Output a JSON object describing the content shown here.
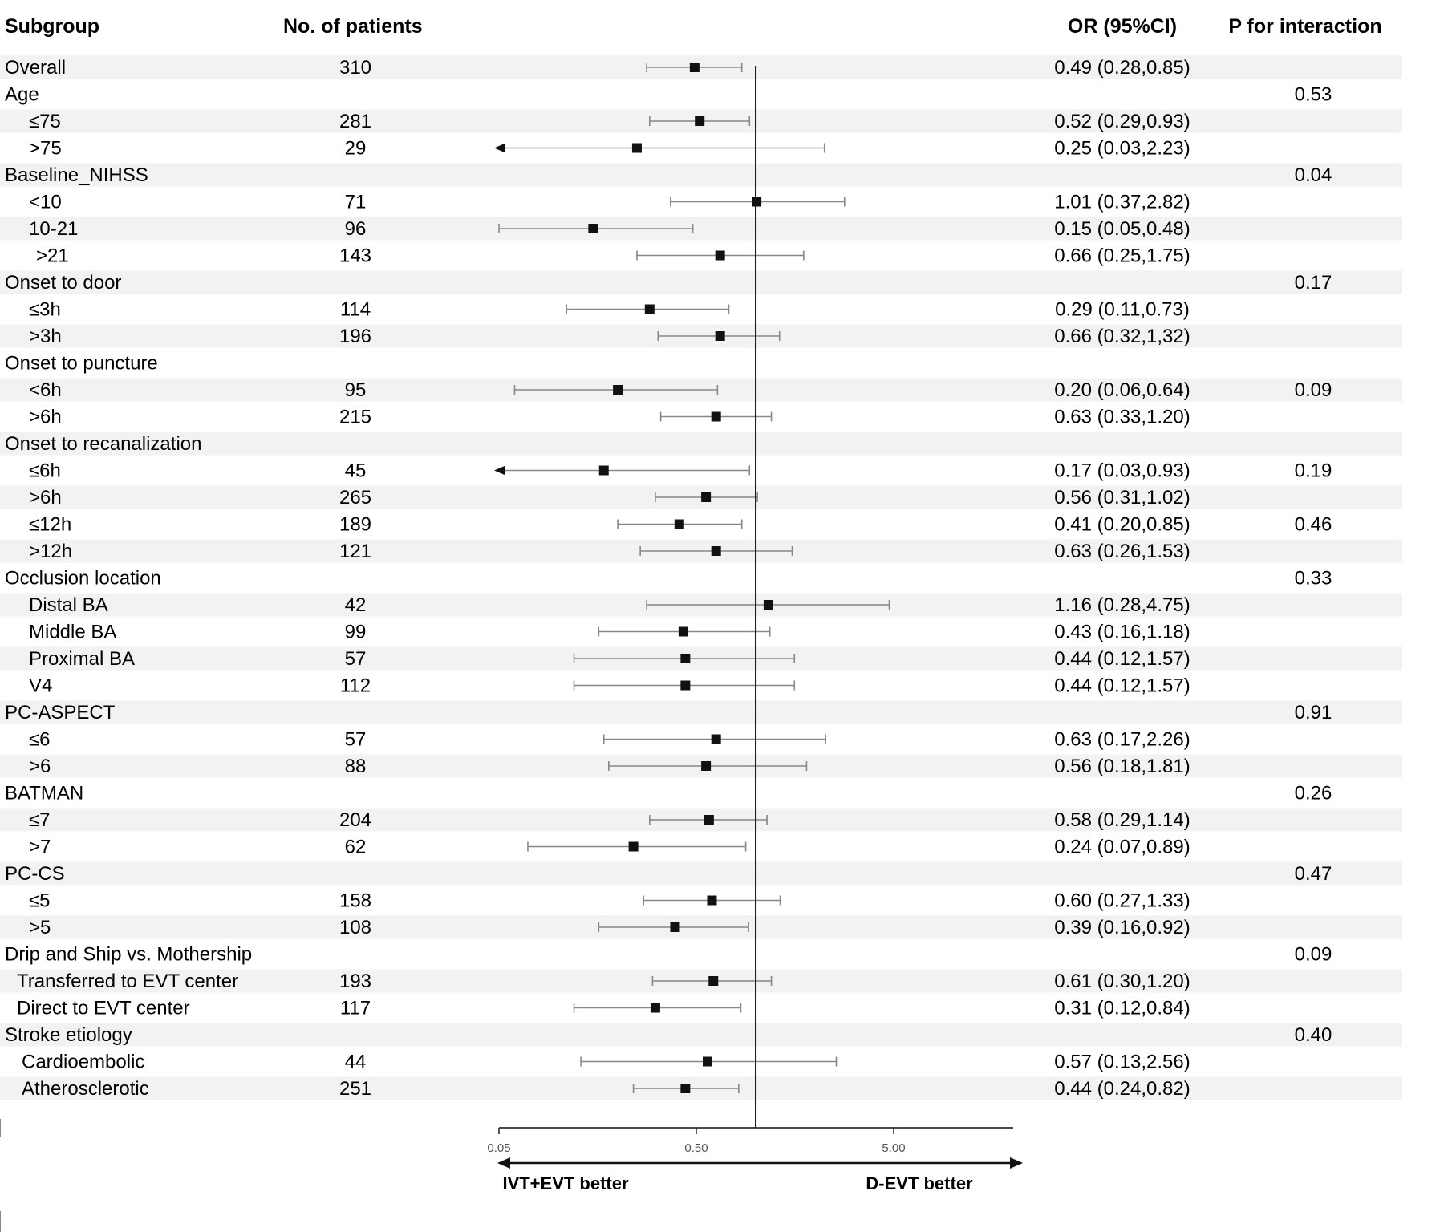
{
  "chart_data": {
    "type": "forest",
    "headers": {
      "subgroup": "Subgroup",
      "patients": "No. of patients",
      "or": "OR (95%CI)",
      "p": "P for interaction"
    },
    "x_scale": "log",
    "ticks": [
      {
        "value": 0.05,
        "label": "0.05"
      },
      {
        "value": 0.5,
        "label": "0.50"
      },
      {
        "value": 5,
        "label": "5.00"
      }
    ],
    "reference_line": 1.0,
    "direction_labels": {
      "left": "IVT+EVT better",
      "right": "D-EVT better"
    },
    "rows": [
      {
        "label": "Overall",
        "indent": 0,
        "n": "310",
        "or": 0.49,
        "lo": 0.28,
        "hi": 0.85,
        "or_text": "0.49 (0.28,0.85)",
        "p": "",
        "shade": true
      },
      {
        "label": "Age",
        "indent": 0,
        "n": "",
        "or": null,
        "or_text": "",
        "p": "0.53",
        "shade": false
      },
      {
        "label": "≤75",
        "indent": 1,
        "n": "281",
        "or": 0.52,
        "lo": 0.29,
        "hi": 0.93,
        "or_text": "0.52 (0.29,0.93)",
        "p": "",
        "shade": true
      },
      {
        "label": ">75",
        "indent": 1,
        "n": "29",
        "or": 0.25,
        "lo": 0.03,
        "hi": 2.23,
        "or_text": "0.25 (0.03,2.23)",
        "p": "",
        "shade": false
      },
      {
        "label": "Baseline_NIHSS",
        "indent": 0,
        "n": "",
        "or": null,
        "or_text": "",
        "p": "0.04",
        "shade": true
      },
      {
        "label": "<10",
        "indent": 1,
        "n": "71",
        "or": 1.01,
        "lo": 0.37,
        "hi": 2.82,
        "or_text": "1.01 (0.37,2.82)",
        "p": "",
        "shade": false
      },
      {
        "label": "10-21",
        "indent": 1,
        "n": "96",
        "or": 0.15,
        "lo": 0.05,
        "hi": 0.48,
        "or_text": "0.15 (0.05,0.48)",
        "p": "",
        "shade": true
      },
      {
        "label": ">21",
        "indent": 1.3,
        "n": "143",
        "or": 0.66,
        "lo": 0.25,
        "hi": 1.75,
        "or_text": "0.66 (0.25,1.75)",
        "p": "",
        "shade": false
      },
      {
        "label": "Onset to door",
        "indent": 0,
        "n": "",
        "or": null,
        "or_text": "",
        "p": "0.17",
        "shade": true
      },
      {
        "label": "≤3h",
        "indent": 1,
        "n": "114",
        "or": 0.29,
        "lo": 0.11,
        "hi": 0.73,
        "or_text": "0.29 (0.11,0.73)",
        "p": "",
        "shade": false
      },
      {
        "label": ">3h",
        "indent": 1,
        "n": "196",
        "or": 0.66,
        "lo": 0.32,
        "hi": 1.32,
        "or_text": "0.66 (0.32,1,32)",
        "p": "",
        "shade": true
      },
      {
        "label": "Onset to puncture",
        "indent": 0,
        "n": "",
        "or": null,
        "or_text": "",
        "p": "",
        "shade": false
      },
      {
        "label": "<6h",
        "indent": 1,
        "n": "95",
        "or": 0.2,
        "lo": 0.06,
        "hi": 0.64,
        "or_text": "0.20 (0.06,0.64)",
        "p": "0.09",
        "shade": true
      },
      {
        "label": ">6h",
        "indent": 1,
        "n": "215",
        "or": 0.63,
        "lo": 0.33,
        "hi": 1.2,
        "or_text": "0.63 (0.33,1.20)",
        "p": "",
        "shade": false
      },
      {
        "label": "Onset to recanalization",
        "indent": 0,
        "n": "",
        "or": null,
        "or_text": "",
        "p": "",
        "shade": true
      },
      {
        "label": "≤6h",
        "indent": 1,
        "n": "45",
        "or": 0.17,
        "lo": 0.03,
        "hi": 0.93,
        "or_text": "0.17 (0.03,0.93)",
        "p": "0.19",
        "shade": false
      },
      {
        "label": ">6h",
        "indent": 1,
        "n": "265",
        "or": 0.56,
        "lo": 0.31,
        "hi": 1.02,
        "or_text": "0.56 (0.31,1.02)",
        "p": "",
        "shade": true
      },
      {
        "label": "≤12h",
        "indent": 1,
        "n": "189",
        "or": 0.41,
        "lo": 0.2,
        "hi": 0.85,
        "or_text": "0.41 (0.20,0.85)",
        "p": "0.46",
        "shade": false
      },
      {
        "label": ">12h",
        "indent": 1,
        "n": "121",
        "or": 0.63,
        "lo": 0.26,
        "hi": 1.53,
        "or_text": "0.63 (0.26,1.53)",
        "p": "",
        "shade": true
      },
      {
        "label": "Occlusion location",
        "indent": 0,
        "n": "",
        "or": null,
        "or_text": "",
        "p": "0.33",
        "shade": false
      },
      {
        "label": "Distal BA",
        "indent": 1,
        "n": "42",
        "or": 1.16,
        "lo": 0.28,
        "hi": 4.75,
        "or_text": "1.16 (0.28,4.75)",
        "p": "",
        "shade": true
      },
      {
        "label": "Middle BA",
        "indent": 1,
        "n": "99",
        "or": 0.43,
        "lo": 0.16,
        "hi": 1.18,
        "or_text": "0.43 (0.16,1.18)",
        "p": "",
        "shade": false
      },
      {
        "label": "Proximal BA",
        "indent": 1,
        "n": "57",
        "or": 0.44,
        "lo": 0.12,
        "hi": 1.57,
        "or_text": "0.44 (0.12,1.57)",
        "p": "",
        "shade": true
      },
      {
        "label": "V4",
        "indent": 1,
        "n": "112",
        "or": 0.44,
        "lo": 0.12,
        "hi": 1.57,
        "or_text": "0.44 (0.12,1.57)",
        "p": "",
        "shade": false
      },
      {
        "label": "PC-ASPECT",
        "indent": 0,
        "n": "",
        "or": null,
        "or_text": "",
        "p": "0.91",
        "shade": true
      },
      {
        "label": "≤6",
        "indent": 1,
        "n": "57",
        "or": 0.63,
        "lo": 0.17,
        "hi": 2.26,
        "or_text": "0.63 (0.17,2.26)",
        "p": "",
        "shade": false
      },
      {
        "label": ">6",
        "indent": 1,
        "n": "88",
        "or": 0.56,
        "lo": 0.18,
        "hi": 1.81,
        "or_text": "0.56 (0.18,1.81)",
        "p": "",
        "shade": true
      },
      {
        "label": "BATMAN",
        "indent": 0,
        "n": "",
        "or": null,
        "or_text": "",
        "p": "0.26",
        "shade": false
      },
      {
        "label": "≤7",
        "indent": 1,
        "n": "204",
        "or": 0.58,
        "lo": 0.29,
        "hi": 1.14,
        "or_text": "0.58 (0.29,1.14)",
        "p": "",
        "shade": true
      },
      {
        "label": ">7",
        "indent": 1,
        "n": "62",
        "or": 0.24,
        "lo": 0.07,
        "hi": 0.89,
        "or_text": "0.24 (0.07,0.89)",
        "p": "",
        "shade": false
      },
      {
        "label": "PC-CS",
        "indent": 0,
        "n": "",
        "or": null,
        "or_text": "",
        "p": "0.47",
        "shade": true
      },
      {
        "label": "≤5",
        "indent": 1,
        "n": "158",
        "or": 0.6,
        "lo": 0.27,
        "hi": 1.33,
        "or_text": "0.60 (0.27,1.33)",
        "p": "",
        "shade": false
      },
      {
        "label": ">5",
        "indent": 1,
        "n": "108",
        "or": 0.39,
        "lo": 0.16,
        "hi": 0.92,
        "or_text": "0.39 (0.16,0.92)",
        "p": "",
        "shade": true
      },
      {
        "label": "Drip and Ship vs. Mothership",
        "indent": 0,
        "n": "",
        "or": null,
        "or_text": "",
        "p": "0.09",
        "shade": false
      },
      {
        "label": "Transferred to EVT center",
        "indent": 0.5,
        "n": "193",
        "or": 0.61,
        "lo": 0.3,
        "hi": 1.2,
        "or_text": "0.61 (0.30,1.20)",
        "p": "",
        "shade": true
      },
      {
        "label": "Direct to EVT center",
        "indent": 0.5,
        "n": "117",
        "or": 0.31,
        "lo": 0.12,
        "hi": 0.84,
        "or_text": "0.31 (0.12,0.84)",
        "p": "",
        "shade": false
      },
      {
        "label": "Stroke etiology",
        "indent": 0,
        "n": "",
        "or": null,
        "or_text": "",
        "p": "0.40",
        "shade": true
      },
      {
        "label": "Cardioembolic",
        "indent": 0.7,
        "n": "44",
        "or": 0.57,
        "lo": 0.13,
        "hi": 2.56,
        "or_text": "0.57 (0.13,2.56)",
        "p": "",
        "shade": false
      },
      {
        "label": "Atherosclerotic",
        "indent": 0.7,
        "n": "251",
        "or": 0.44,
        "lo": 0.24,
        "hi": 0.82,
        "or_text": "0.44 (0.24,0.82)",
        "p": "",
        "shade": true
      }
    ]
  }
}
